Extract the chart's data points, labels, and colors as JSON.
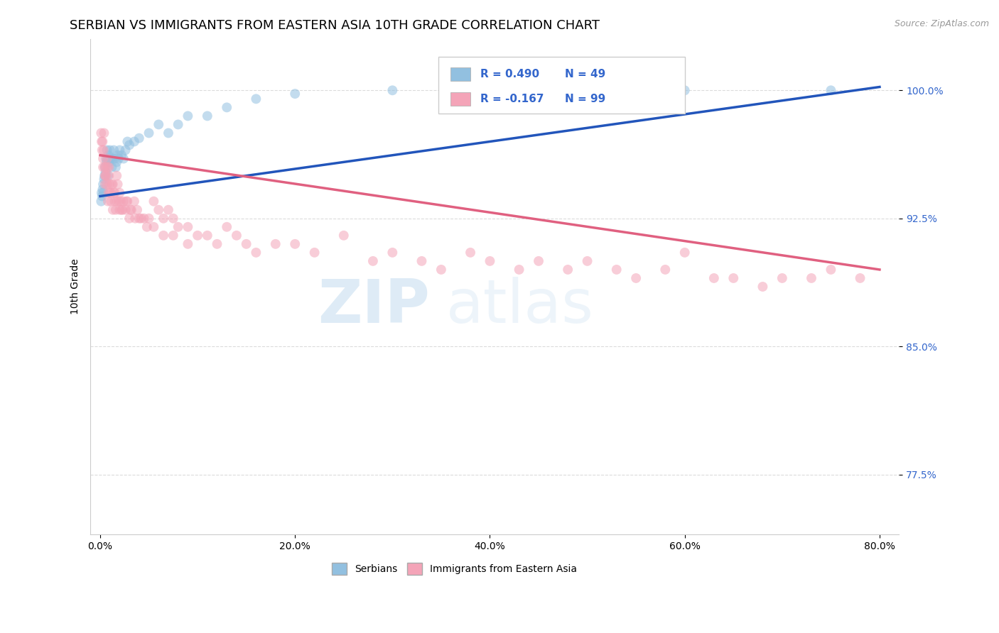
{
  "title": "SERBIAN VS IMMIGRANTS FROM EASTERN ASIA 10TH GRADE CORRELATION CHART",
  "source": "Source: ZipAtlas.com",
  "xlabel_vals": [
    0.0,
    20.0,
    40.0,
    60.0,
    80.0
  ],
  "ylabel_vals": [
    77.5,
    85.0,
    92.5,
    100.0
  ],
  "xlim": [
    -1.0,
    82.0
  ],
  "ylim": [
    74.0,
    103.0
  ],
  "ylabel": "10th Grade",
  "legend_entries": [
    {
      "label": "Serbians",
      "color": "#a8c4e0",
      "R": 0.49,
      "N": 49
    },
    {
      "label": "Immigrants from Eastern Asia",
      "color": "#f4a0b0",
      "R": -0.167,
      "N": 99
    }
  ],
  "blue_scatter_x": [
    0.1,
    0.15,
    0.2,
    0.25,
    0.3,
    0.35,
    0.4,
    0.45,
    0.5,
    0.55,
    0.6,
    0.65,
    0.7,
    0.75,
    0.8,
    0.85,
    0.9,
    0.95,
    1.0,
    1.1,
    1.2,
    1.3,
    1.4,
    1.5,
    1.6,
    1.7,
    1.8,
    1.9,
    2.0,
    2.2,
    2.4,
    2.6,
    2.8,
    3.0,
    3.5,
    4.0,
    5.0,
    6.0,
    7.0,
    8.0,
    9.0,
    11.0,
    13.0,
    16.0,
    20.0,
    30.0,
    45.0,
    60.0,
    75.0
  ],
  "blue_scatter_y": [
    93.5,
    94.0,
    93.8,
    94.2,
    94.5,
    94.0,
    94.8,
    95.0,
    95.5,
    95.2,
    96.0,
    95.8,
    96.5,
    96.0,
    95.0,
    96.2,
    95.8,
    96.0,
    96.5,
    96.0,
    95.5,
    96.0,
    96.5,
    96.0,
    95.5,
    95.8,
    96.2,
    96.0,
    96.5,
    96.2,
    96.0,
    96.5,
    97.0,
    96.8,
    97.0,
    97.2,
    97.5,
    98.0,
    97.5,
    98.0,
    98.5,
    98.5,
    99.0,
    99.5,
    99.8,
    100.0,
    100.0,
    100.0,
    100.0
  ],
  "pink_scatter_x": [
    0.1,
    0.15,
    0.2,
    0.25,
    0.3,
    0.35,
    0.4,
    0.45,
    0.5,
    0.55,
    0.6,
    0.65,
    0.7,
    0.75,
    0.8,
    0.85,
    0.9,
    0.95,
    1.0,
    1.1,
    1.2,
    1.3,
    1.4,
    1.5,
    1.6,
    1.7,
    1.8,
    1.9,
    2.0,
    2.1,
    2.2,
    2.4,
    2.6,
    2.8,
    3.0,
    3.2,
    3.5,
    3.8,
    4.0,
    4.5,
    5.0,
    5.5,
    6.0,
    6.5,
    7.0,
    7.5,
    8.0,
    9.0,
    10.0,
    11.0,
    12.0,
    13.0,
    14.0,
    15.0,
    16.0,
    18.0,
    20.0,
    22.0,
    25.0,
    28.0,
    30.0,
    33.0,
    35.0,
    38.0,
    40.0,
    43.0,
    45.0,
    48.0,
    50.0,
    53.0,
    55.0,
    58.0,
    60.0,
    63.0,
    65.0,
    68.0,
    70.0,
    73.0,
    75.0,
    78.0,
    0.3,
    0.5,
    0.7,
    0.9,
    1.1,
    1.3,
    1.5,
    1.7,
    2.0,
    2.3,
    2.7,
    3.1,
    3.6,
    4.2,
    4.8,
    5.5,
    6.5,
    7.5,
    9.0
  ],
  "pink_scatter_y": [
    97.5,
    97.0,
    96.5,
    97.0,
    96.0,
    96.5,
    97.5,
    95.5,
    94.5,
    95.0,
    95.5,
    95.0,
    96.0,
    95.5,
    93.5,
    94.0,
    95.0,
    94.5,
    94.0,
    93.5,
    94.5,
    93.0,
    94.0,
    93.5,
    93.0,
    93.5,
    94.5,
    93.5,
    93.0,
    93.5,
    93.0,
    93.5,
    93.0,
    93.5,
    92.5,
    93.0,
    93.5,
    93.0,
    92.5,
    92.5,
    92.5,
    93.5,
    93.0,
    92.5,
    93.0,
    92.5,
    92.0,
    92.0,
    91.5,
    91.5,
    91.0,
    92.0,
    91.5,
    91.0,
    90.5,
    91.0,
    91.0,
    90.5,
    91.5,
    90.0,
    90.5,
    90.0,
    89.5,
    90.5,
    90.0,
    89.5,
    90.0,
    89.5,
    90.0,
    89.5,
    89.0,
    89.5,
    90.5,
    89.0,
    89.0,
    88.5,
    89.0,
    89.0,
    89.5,
    89.0,
    95.5,
    95.0,
    94.5,
    95.5,
    94.0,
    94.5,
    94.0,
    95.0,
    94.0,
    93.0,
    93.5,
    93.0,
    92.5,
    92.5,
    92.0,
    92.0,
    91.5,
    91.5,
    91.0
  ],
  "blue_line_x": [
    0.0,
    80.0
  ],
  "blue_line_y": [
    93.8,
    100.2
  ],
  "pink_line_x": [
    0.0,
    80.0
  ],
  "pink_line_y": [
    96.2,
    89.5
  ],
  "scatter_alpha": 0.55,
  "scatter_size": 100,
  "blue_color": "#92c0e0",
  "pink_color": "#f4a4b8",
  "blue_line_color": "#2255bb",
  "pink_line_color": "#e06080",
  "watermark_text": "ZIP",
  "watermark_text2": "atlas",
  "title_fontsize": 13,
  "axis_label_fontsize": 10,
  "tick_fontsize": 10,
  "source_text": "Source: ZipAtlas.com"
}
